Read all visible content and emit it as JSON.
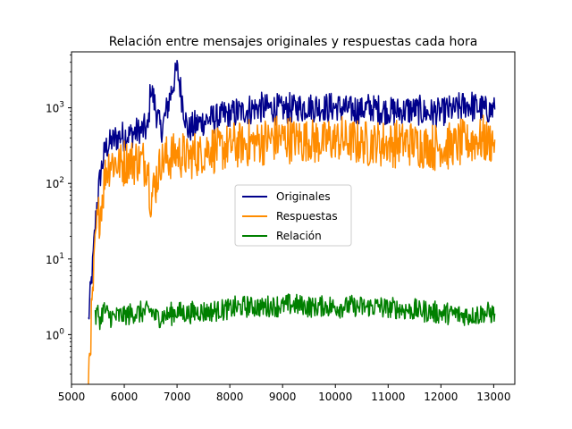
{
  "chart_data": {
    "type": "line",
    "title": "Relación entre mensajes originales y respuestas cada hora",
    "xlabel": "",
    "ylabel": "",
    "xlim": [
      5000,
      13400
    ],
    "ylim": [
      0.22,
      5500
    ],
    "yscale": "log",
    "grid": false,
    "legend_position": "center",
    "x_ticks": [
      5000,
      6000,
      7000,
      8000,
      9000,
      10000,
      11000,
      12000,
      13000
    ],
    "x_tick_labels": [
      "5000",
      "6000",
      "7000",
      "8000",
      "9000",
      "10000",
      "11000",
      "12000",
      "13000"
    ],
    "y_ticks": [
      1,
      10,
      100,
      1000
    ],
    "y_tick_labels": [
      "10^0",
      "10^1",
      "10^2",
      "10^3"
    ],
    "series": [
      {
        "name": "Originales",
        "color": "#00008b",
        "x": [
          5320,
          5400,
          5470,
          5560,
          5650,
          5750,
          5900,
          6100,
          6300,
          6450,
          6500,
          6700,
          7000,
          7200,
          7450,
          7600,
          7800,
          8000,
          8250,
          8500,
          8750,
          9000,
          9250,
          9500,
          9750,
          10000,
          10250,
          10500,
          10750,
          11000,
          11250,
          11500,
          11750,
          12000,
          12250,
          12500,
          12700,
          12900,
          13020
        ],
        "y": [
          1.5,
          8,
          45,
          150,
          300,
          350,
          420,
          440,
          500,
          520,
          1900,
          480,
          3300,
          500,
          650,
          700,
          750,
          820,
          900,
          1000,
          1000,
          950,
          1000,
          1050,
          1000,
          1020,
          950,
          950,
          1000,
          900,
          900,
          950,
          850,
          880,
          950,
          1100,
          1000,
          900,
          950
        ]
      },
      {
        "name": "Respuestas",
        "color": "#ff8c00",
        "x": [
          5320,
          5400,
          5470,
          5560,
          5650,
          5750,
          5900,
          6100,
          6300,
          6450,
          6500,
          6700,
          7000,
          7200,
          7450,
          7600,
          7800,
          8000,
          8250,
          8500,
          8750,
          9000,
          9250,
          9500,
          9750,
          10000,
          10250,
          10500,
          10750,
          11000,
          11250,
          11500,
          11750,
          12000,
          12250,
          12500,
          12700,
          12900,
          13020
        ],
        "y": [
          0.3,
          3,
          25,
          50,
          150,
          200,
          180,
          200,
          200,
          180,
          60,
          200,
          250,
          220,
          250,
          300,
          280,
          320,
          330,
          350,
          380,
          400,
          380,
          370,
          350,
          380,
          360,
          340,
          350,
          330,
          350,
          340,
          310,
          300,
          320,
          350,
          380,
          360,
          380
        ]
      },
      {
        "name": "Relación",
        "color": "#008000",
        "x": [
          5450,
          5500,
          5550,
          5600,
          5700,
          5800,
          6000,
          6200,
          6400,
          6500,
          6600,
          6800,
          7000,
          7200,
          7400,
          7600,
          7800,
          8000,
          8200,
          8400,
          8600,
          8800,
          9000,
          9200,
          9400,
          9600,
          9800,
          10000,
          10200,
          10400,
          10600,
          10800,
          11000,
          11200,
          11400,
          11600,
          11800,
          12000,
          12200,
          12400,
          12600,
          12800,
          13020
        ],
        "y": [
          1.6,
          2.0,
          1.5,
          2.2,
          1.8,
          1.7,
          1.8,
          1.9,
          2.0,
          2.1,
          1.7,
          1.8,
          2.0,
          1.9,
          2.0,
          2.0,
          2.1,
          2.2,
          2.3,
          2.4,
          2.3,
          2.4,
          2.4,
          2.5,
          2.4,
          2.3,
          2.4,
          2.3,
          2.4,
          2.3,
          2.3,
          2.4,
          2.2,
          2.2,
          2.1,
          2.1,
          2.0,
          1.9,
          1.9,
          1.8,
          1.8,
          1.9,
          1.9
        ]
      }
    ]
  }
}
